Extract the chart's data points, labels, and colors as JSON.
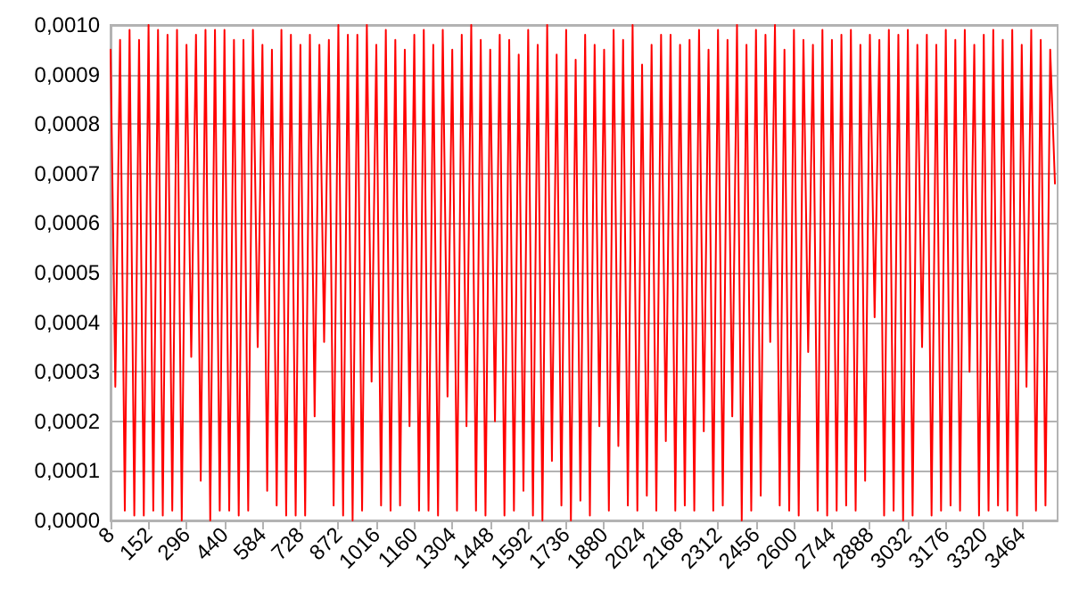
{
  "chart_data": {
    "type": "line",
    "grid": "y",
    "marker": "none",
    "line_style": "solid",
    "xlim": [
      8,
      3600
    ],
    "xticks": [
      8,
      152,
      296,
      440,
      584,
      728,
      872,
      1016,
      1160,
      1304,
      1448,
      1592,
      1736,
      1880,
      2024,
      2168,
      2312,
      2456,
      2600,
      2744,
      2888,
      3032,
      3176,
      3320,
      3464
    ],
    "ylim": [
      0,
      0.001
    ],
    "yticks": [
      {
        "value": 0,
        "label": "0,0000"
      },
      {
        "value": 0.0001,
        "label": "0,0001"
      },
      {
        "value": 0.0002,
        "label": "0,0002"
      },
      {
        "value": 0.0003,
        "label": "0,0003"
      },
      {
        "value": 0.0004,
        "label": "0,0004"
      },
      {
        "value": 0.0005,
        "label": "0,0005"
      },
      {
        "value": 0.0006,
        "label": "0,0006"
      },
      {
        "value": 0.0007,
        "label": "0,0007"
      },
      {
        "value": 0.0008,
        "label": "0,0008"
      },
      {
        "value": 0.0009,
        "label": "0,0009"
      },
      {
        "value": 0.001,
        "label": "0,0010"
      }
    ],
    "x": [
      8,
      26,
      44,
      62,
      80,
      98,
      116,
      134,
      152,
      170,
      188,
      206,
      224,
      242,
      260,
      278,
      296,
      314,
      332,
      350,
      368,
      386,
      404,
      422,
      440,
      458,
      476,
      494,
      512,
      530,
      548,
      566,
      584,
      602,
      620,
      638,
      656,
      674,
      692,
      710,
      728,
      746,
      764,
      782,
      800,
      818,
      836,
      854,
      872,
      890,
      908,
      926,
      944,
      962,
      980,
      998,
      1016,
      1034,
      1052,
      1070,
      1088,
      1106,
      1124,
      1142,
      1160,
      1178,
      1196,
      1214,
      1232,
      1250,
      1268,
      1286,
      1304,
      1322,
      1340,
      1358,
      1376,
      1394,
      1412,
      1430,
      1448,
      1466,
      1484,
      1502,
      1520,
      1538,
      1556,
      1574,
      1592,
      1610,
      1628,
      1646,
      1664,
      1682,
      1700,
      1718,
      1736,
      1754,
      1772,
      1790,
      1808,
      1826,
      1844,
      1862,
      1880,
      1898,
      1916,
      1934,
      1952,
      1970,
      1988,
      2006,
      2024,
      2042,
      2060,
      2078,
      2096,
      2114,
      2132,
      2150,
      2168,
      2186,
      2204,
      2222,
      2240,
      2258,
      2276,
      2294,
      2312,
      2330,
      2348,
      2366,
      2384,
      2402,
      2420,
      2438,
      2456,
      2474,
      2492,
      2510,
      2528,
      2546,
      2564,
      2582,
      2600,
      2618,
      2636,
      2654,
      2672,
      2690,
      2708,
      2726,
      2744,
      2762,
      2780,
      2798,
      2816,
      2834,
      2852,
      2870,
      2888,
      2906,
      2924,
      2942,
      2960,
      2978,
      2996,
      3014,
      3032,
      3050,
      3068,
      3086,
      3104,
      3122,
      3140,
      3158,
      3176,
      3194,
      3212,
      3230,
      3248,
      3266,
      3284,
      3302,
      3320,
      3338,
      3356,
      3374,
      3392,
      3410,
      3428,
      3446,
      3464,
      3482,
      3500,
      3518,
      3536,
      3554,
      3572,
      3590
    ],
    "series": [
      {
        "color": "#ff0000",
        "values": [
          0.00095,
          0.00027,
          0.00097,
          2e-05,
          0.00099,
          1e-05,
          0.00097,
          1e-05,
          0.001,
          2e-05,
          0.00099,
          1e-05,
          0.00098,
          2e-05,
          0.00099,
          0,
          0.00096,
          0.00033,
          0.00098,
          8e-05,
          0.00099,
          0,
          0.00099,
          2e-05,
          0.00099,
          2e-05,
          0.00097,
          1e-05,
          0.00097,
          2e-05,
          0.00099,
          0.00035,
          0.00096,
          6e-05,
          0.00095,
          3e-05,
          0.00099,
          1e-05,
          0.00098,
          1e-05,
          0.00096,
          1e-05,
          0.00098,
          0.00021,
          0.00096,
          0.00036,
          0.00097,
          3e-05,
          0.001,
          1e-05,
          0.00098,
          0,
          0.00098,
          2e-05,
          0.001,
          0.00028,
          0.00096,
          3e-05,
          0.00099,
          2e-05,
          0.00097,
          3e-05,
          0.00095,
          0.00019,
          0.00098,
          2e-05,
          0.00099,
          2e-05,
          0.00096,
          1e-05,
          0.00099,
          0.00025,
          0.00095,
          2e-05,
          0.00098,
          0.00019,
          0.001,
          2e-05,
          0.00097,
          1e-05,
          0.00095,
          0.0002,
          0.00098,
          1e-05,
          0.00097,
          2e-05,
          0.00094,
          6e-05,
          0.00099,
          1e-05,
          0.00096,
          0,
          0.001,
          0.00012,
          0.00094,
          3e-05,
          0.00099,
          0,
          0.00093,
          4e-05,
          0.00098,
          1e-05,
          0.00096,
          0.00019,
          0.00095,
          2e-05,
          0.00099,
          0.00015,
          0.00097,
          3e-05,
          0.001,
          2e-05,
          0.00092,
          5e-05,
          0.00096,
          2e-05,
          0.00098,
          0.00016,
          0.00098,
          2e-05,
          0.00096,
          3e-05,
          0.00097,
          2e-05,
          0.00099,
          0.00018,
          0.00095,
          2e-05,
          0.00099,
          3e-05,
          0.00097,
          0.00021,
          0.001,
          0,
          0.00096,
          2e-05,
          0.00099,
          5e-05,
          0.00098,
          0.00036,
          0.001,
          3e-05,
          0.00095,
          2e-05,
          0.00099,
          1e-05,
          0.00097,
          0.00034,
          0.00096,
          2e-05,
          0.00099,
          1e-05,
          0.00097,
          2e-05,
          0.00098,
          3e-05,
          0.00099,
          2e-05,
          0.00096,
          8e-05,
          0.00098,
          0.00041,
          0.00097,
          1e-05,
          0.00099,
          2e-05,
          0.00098,
          0,
          0.00099,
          1e-05,
          0.00096,
          0.00035,
          0.00098,
          1e-05,
          0.00096,
          2e-05,
          0.00099,
          3e-05,
          0.00097,
          2e-05,
          0.00099,
          0.0003,
          0.00096,
          1e-05,
          0.00098,
          2e-05,
          0.00099,
          3e-05,
          0.00097,
          2e-05,
          0.00099,
          1e-05,
          0.00096,
          0.00027,
          0.00099,
          2e-05,
          0.00097,
          3e-05,
          0.00095,
          0.00068
        ]
      }
    ]
  }
}
